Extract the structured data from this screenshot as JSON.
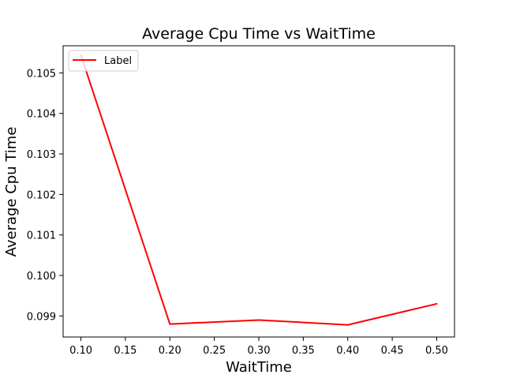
{
  "chart_data": {
    "type": "line",
    "title": "Average Cpu Time vs WaitTime",
    "xlabel": "WaitTime",
    "ylabel": "Average Cpu Time",
    "x": [
      0.1,
      0.2,
      0.3,
      0.4,
      0.5
    ],
    "series": [
      {
        "name": "Label",
        "color": "#ff0000",
        "values": [
          0.10544,
          0.0988,
          0.0989,
          0.09878,
          0.0993
        ]
      }
    ],
    "xlim": [
      0.08,
      0.52
    ],
    "ylim": [
      0.09848,
      0.10567
    ],
    "xticks": [
      0.1,
      0.15,
      0.2,
      0.25,
      0.3,
      0.35,
      0.4,
      0.45,
      0.5
    ],
    "xtick_labels": [
      "0.10",
      "0.15",
      "0.20",
      "0.25",
      "0.30",
      "0.35",
      "0.40",
      "0.45",
      "0.50"
    ],
    "yticks": [
      0.099,
      0.1,
      0.101,
      0.102,
      0.103,
      0.104,
      0.105
    ],
    "ytick_labels": [
      "0.099",
      "0.100",
      "0.101",
      "0.102",
      "0.103",
      "0.104",
      "0.105"
    ],
    "grid": false,
    "legend_position": "top-left"
  }
}
